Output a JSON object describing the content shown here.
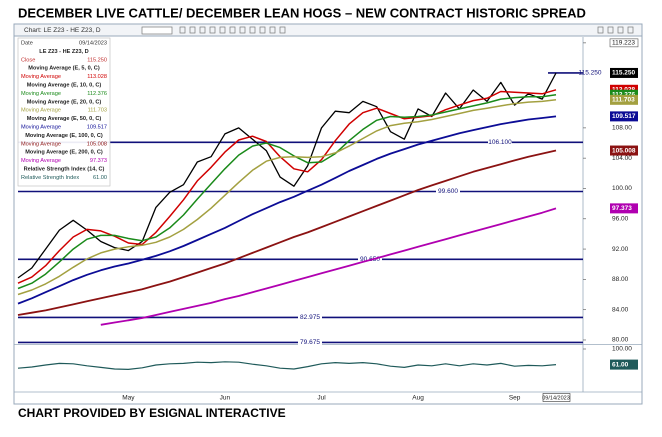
{
  "title": "DECEMBER LIVE CATTLE/ DECEMBER LEAN HOGS –    NEW CONTRACT HISTORIC SPREAD",
  "footer": "CHART PROVIDED BY ESIGNAL INTERACTIVE",
  "toolbar": "Chart: LE Z23 - HE Z23, D",
  "chart_data": [
    {
      "type": "line",
      "symbol": "LE Z23 - HE Z23, D",
      "date_caption": "Date",
      "categories": [
        null,
        null,
        null,
        null,
        null,
        null,
        null,
        null,
        "May",
        null,
        null,
        null,
        null,
        null,
        null,
        "Jun",
        null,
        null,
        null,
        null,
        null,
        null,
        "Jul",
        null,
        null,
        null,
        null,
        null,
        null,
        "Aug",
        null,
        null,
        null,
        null,
        null,
        null,
        "Sep",
        null,
        null,
        "09/14/2023"
      ],
      "ylim": [
        79.6,
        119.6
      ],
      "yticks": [
        {
          "value": 80,
          "label": "80.00"
        },
        {
          "value": 84,
          "label": "84.00"
        },
        {
          "value": 88,
          "label": "88.00"
        },
        {
          "value": 92,
          "label": "92.00"
        },
        {
          "value": 96,
          "label": "96.00"
        },
        {
          "value": 100,
          "label": "100.00"
        },
        {
          "value": 104,
          "label": "104.00"
        },
        {
          "value": 108,
          "label": "108.00"
        },
        119.223
      ],
      "hlines": [
        {
          "value": 115.25,
          "label": "115.250"
        },
        {
          "value": 106.1,
          "label": "106.100"
        },
        {
          "value": 99.6,
          "label": "99.600"
        },
        {
          "value": 90.65,
          "label": "90.650"
        },
        {
          "value": 82.975,
          "label": "82.975"
        },
        {
          "value": 79.675,
          "label": "79.675"
        }
      ],
      "hline_color": "#10107a",
      "series": [
        {
          "name": "Close",
          "caption": "Close",
          "last_label": "115.250",
          "color": "#000000",
          "values": [
            88.2,
            89.5,
            92,
            94.5,
            95.8,
            94.5,
            93,
            92.2,
            91.8,
            93,
            97.5,
            99.5,
            100.5,
            103.5,
            104.2,
            107.2,
            108,
            106.5,
            105,
            101.5,
            100.3,
            103,
            108,
            110.2,
            110,
            111.5,
            110.8,
            107.5,
            106.5,
            110.5,
            109.5,
            112.6,
            110.5,
            113,
            111.5,
            114,
            111,
            112.5,
            111.8,
            115.25
          ]
        },
        {
          "name": "Moving Average (E, 5, 0, C)",
          "caption": "Moving Average",
          "last_label": "113.028",
          "color": "#d00000",
          "values": [
            87.5,
            88.3,
            89.8,
            91.8,
            93.6,
            94.6,
            94.4,
            93.7,
            92.8,
            92.6,
            94.2,
            96.3,
            98.5,
            101,
            102.8,
            104.8,
            106.4,
            106.9,
            106.2,
            104.2,
            102.6,
            102.2,
            103.8,
            106.3,
            108.5,
            110,
            110.6,
            109.9,
            109.2,
            109.4,
            109.6,
            110.4,
            111,
            111.6,
            111.9,
            112.8,
            112.7,
            112.6,
            112.5,
            113.028
          ]
        },
        {
          "name": "Moving Average (E, 10, 0, C)",
          "caption": "Moving Average",
          "last_label": "112.376",
          "color": "#1a8a1a",
          "values": [
            86.8,
            87.5,
            88.7,
            90.3,
            92,
            93.3,
            93.8,
            93.8,
            93.4,
            93.1,
            93.6,
            94.8,
            96.5,
            98.6,
            100.6,
            102.6,
            104.4,
            105.6,
            106,
            105.4,
            104.3,
            103.4,
            103.5,
            104.6,
            106.3,
            107.8,
            109,
            109.5,
            109.4,
            109.5,
            109.7,
            110.1,
            110.5,
            110.9,
            111.3,
            111.8,
            112,
            112.1,
            112.1,
            112.376
          ]
        },
        {
          "name": "Moving Average (E, 20, 0, C)",
          "caption": "Moving Average",
          "last_label": "111.703",
          "color": "#a3a040",
          "values": [
            86,
            86.6,
            87.4,
            88.4,
            89.6,
            90.7,
            91.5,
            92,
            92.3,
            92.5,
            92.9,
            93.6,
            94.6,
            95.9,
            97.4,
            99.1,
            100.8,
            102.4,
            103.6,
            104.1,
            104.2,
            104.1,
            104.2,
            104.7,
            105.6,
            106.6,
            107.6,
            108.3,
            108.6,
            108.8,
            109.1,
            109.5,
            109.9,
            110.3,
            110.6,
            110.9,
            111.2,
            111.4,
            111.5,
            111.703
          ]
        },
        {
          "name": "Moving Average (E, 50, 0, C)",
          "caption": "Moving Average",
          "last_label": "109.517",
          "color": "#0c0c96",
          "values": [
            84.8,
            85.5,
            86.3,
            87.1,
            87.9,
            88.6,
            89.2,
            89.7,
            90.1,
            90.6,
            91.1,
            91.7,
            92.4,
            93.2,
            94,
            94.8,
            95.7,
            96.6,
            97.4,
            98.2,
            98.9,
            99.7,
            100.5,
            101.4,
            102.3,
            103.1,
            103.9,
            104.6,
            105.2,
            105.8,
            106.3,
            106.8,
            107.3,
            107.7,
            108.1,
            108.5,
            108.8,
            109.1,
            109.3,
            109.517
          ]
        },
        {
          "name": "Moving Average (E, 100, 0, C)",
          "caption": "Moving Average",
          "last_label": "105.008",
          "color": "#8b1212",
          "values": [
            83.3,
            83.6,
            83.9,
            84.3,
            84.7,
            85.1,
            85.5,
            85.9,
            86.3,
            86.7,
            87.2,
            87.7,
            88.3,
            88.9,
            89.5,
            90.1,
            90.8,
            91.5,
            92.2,
            92.9,
            93.6,
            94.2,
            94.9,
            95.6,
            96.3,
            97,
            97.7,
            98.4,
            99.1,
            99.8,
            100.4,
            101,
            101.6,
            102.2,
            102.7,
            103.2,
            103.7,
            104.2,
            104.6,
            105.008
          ]
        },
        {
          "name": "Moving Average (E, 200, 0, C)",
          "caption": "Moving Average",
          "last_label": "97.373",
          "color": "#b000b0",
          "values": [
            null,
            null,
            null,
            null,
            null,
            null,
            82.0,
            82.3,
            82.6,
            82.9,
            83.3,
            83.7,
            84.1,
            84.5,
            84.9,
            85.4,
            85.8,
            86.3,
            86.8,
            87.3,
            87.8,
            88.3,
            88.8,
            89.3,
            89.8,
            90.3,
            90.8,
            91.3,
            91.8,
            92.3,
            92.8,
            93.3,
            93.8,
            94.3,
            94.8,
            95.3,
            95.8,
            96.3,
            96.8,
            97.373
          ]
        }
      ]
    },
    {
      "type": "line",
      "ylim": [
        0,
        100
      ],
      "yticks": [
        {
          "value": 100,
          "label": "100.00"
        }
      ],
      "series": [
        {
          "name": "Relative Strength Index (14, C)",
          "caption": "Relative Strength Index",
          "last_label": "61.00",
          "color": "#1f5a5a",
          "values": [
            52,
            55,
            60,
            64,
            63,
            58,
            54,
            50,
            49,
            53,
            60,
            63,
            64,
            67,
            66,
            68,
            67,
            62,
            58,
            52,
            50,
            56,
            63,
            66,
            64,
            66,
            63,
            57,
            54,
            60,
            58,
            63,
            58,
            63,
            60,
            64,
            57,
            59,
            58,
            61
          ]
        }
      ]
    }
  ]
}
